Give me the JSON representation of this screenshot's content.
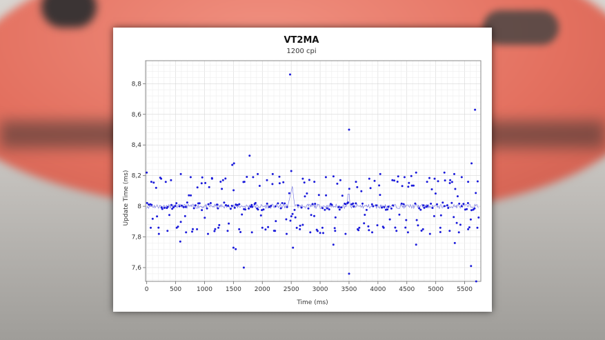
{
  "chart_data": {
    "type": "scatter",
    "title": "VT2MA",
    "subtitle": "1200 cpi",
    "xlabel": "Time (ms)",
    "ylabel": "Update Time (ms)",
    "xlim": [
      -20,
      5780
    ],
    "ylim": [
      7.51,
      8.95
    ],
    "x_ticks": [
      0,
      500,
      1000,
      1500,
      2000,
      2500,
      3000,
      3500,
      4000,
      4500,
      5000,
      5500
    ],
    "x_tick_labels": [
      "0",
      "500",
      "1000",
      "1500",
      "2000",
      "2500",
      "3000",
      "3500",
      "4000",
      "4500",
      "5000",
      "5500"
    ],
    "y_ticks": [
      7.6,
      7.8,
      8.0,
      8.2,
      8.4,
      8.6,
      8.8
    ],
    "y_tick_labels": [
      "7,6",
      "7,8",
      "8",
      "8,2",
      "8,4",
      "8,6",
      "8,8"
    ],
    "grid": true,
    "point_color": "#1a1adb",
    "line_color": "#6a6ae0",
    "series": [
      {
        "points": [
          [
            2480,
            8.86
          ],
          [
            5680,
            8.63
          ],
          [
            3500,
            8.5
          ],
          [
            1780,
            8.33
          ],
          [
            1510,
            8.28
          ],
          [
            1480,
            8.27
          ],
          [
            5620,
            8.28
          ],
          [
            2500,
            8.23
          ],
          [
            0,
            8.22
          ],
          [
            590,
            8.21
          ],
          [
            5150,
            8.22
          ],
          [
            4660,
            8.22
          ],
          [
            1920,
            8.21
          ],
          [
            2180,
            8.21
          ],
          [
            4040,
            8.21
          ],
          [
            5320,
            8.21
          ],
          [
            1680,
            7.6
          ],
          [
            5610,
            7.61
          ],
          [
            3500,
            7.56
          ],
          [
            5700,
            7.51
          ],
          [
            1500,
            7.73
          ],
          [
            1540,
            7.72
          ],
          [
            2530,
            7.73
          ],
          [
            3230,
            7.75
          ],
          [
            4660,
            7.75
          ],
          [
            5330,
            7.76
          ],
          [
            580,
            7.77
          ]
        ],
        "band_upper": [
          [
            80,
            8.16
          ],
          [
            250,
            8.18
          ],
          [
            420,
            8.17
          ],
          [
            760,
            8.19
          ],
          [
            950,
            8.15
          ],
          [
            1130,
            8.18
          ],
          [
            1320,
            8.17
          ],
          [
            1690,
            8.16
          ],
          [
            1840,
            8.19
          ],
          [
            2080,
            8.17
          ],
          [
            2300,
            8.15
          ],
          [
            2700,
            8.18
          ],
          [
            2900,
            8.16
          ],
          [
            3100,
            8.19
          ],
          [
            3350,
            8.17
          ],
          [
            3620,
            8.16
          ],
          [
            3850,
            8.18
          ],
          [
            4250,
            8.17
          ],
          [
            4460,
            8.19
          ],
          [
            4850,
            8.16
          ],
          [
            4980,
            8.18
          ],
          [
            5250,
            8.17
          ],
          [
            5450,
            8.19
          ],
          [
            5560,
            8.16
          ]
        ],
        "band_lower": [
          [
            70,
            7.86
          ],
          [
            210,
            7.82
          ],
          [
            360,
            7.84
          ],
          [
            520,
            7.86
          ],
          [
            680,
            7.83
          ],
          [
            870,
            7.85
          ],
          [
            1060,
            7.82
          ],
          [
            1240,
            7.86
          ],
          [
            1400,
            7.84
          ],
          [
            1600,
            7.85
          ],
          [
            1820,
            7.83
          ],
          [
            2000,
            7.86
          ],
          [
            2220,
            7.84
          ],
          [
            2420,
            7.82
          ],
          [
            2650,
            7.85
          ],
          [
            2830,
            7.83
          ],
          [
            3040,
            7.86
          ],
          [
            3260,
            7.84
          ],
          [
            3440,
            7.82
          ],
          [
            3650,
            7.85
          ],
          [
            3900,
            7.83
          ],
          [
            4100,
            7.86
          ],
          [
            4320,
            7.84
          ],
          [
            4520,
            7.83
          ],
          [
            4780,
            7.85
          ],
          [
            4900,
            7.82
          ],
          [
            5080,
            7.86
          ],
          [
            5240,
            7.84
          ],
          [
            5400,
            7.83
          ],
          [
            5560,
            7.85
          ],
          [
            5720,
            7.86
          ]
        ]
      }
    ]
  }
}
